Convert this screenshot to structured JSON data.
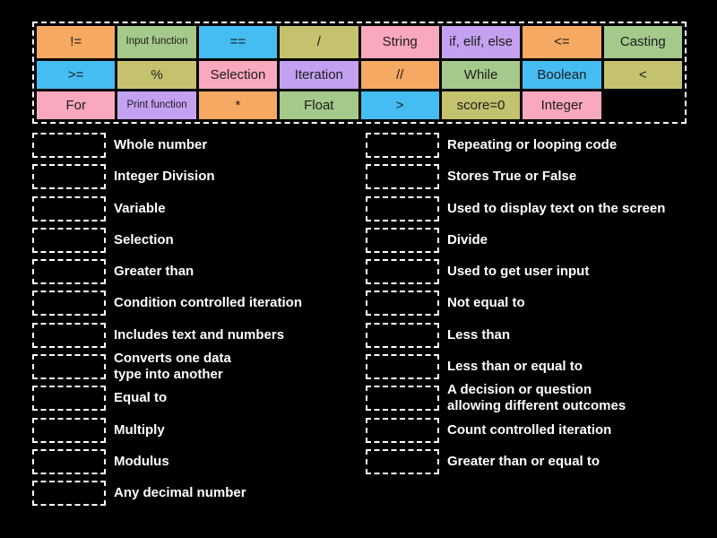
{
  "colors": {
    "background": "#000000",
    "tile_text": "#1c1c1c",
    "definition_text": "#ffffff",
    "slot_border": "#ffffff",
    "palette": {
      "orange": "#F5A962",
      "green": "#A5C98B",
      "blue": "#45BDF2",
      "khaki": "#C4C26E",
      "pink": "#F9A8BE",
      "purple": "#C4A1F0"
    }
  },
  "tile_bank": {
    "rows": [
      [
        {
          "label": "!=",
          "color": "orange"
        },
        {
          "label": "Input function",
          "color": "green",
          "small": true
        },
        {
          "label": "==",
          "color": "blue"
        },
        {
          "label": "/",
          "color": "khaki"
        },
        {
          "label": "String",
          "color": "pink"
        },
        {
          "label": "if, elif, else",
          "color": "purple"
        },
        {
          "label": "<=",
          "color": "orange"
        },
        {
          "label": "Casting",
          "color": "green"
        }
      ],
      [
        {
          "label": ">=",
          "color": "blue"
        },
        {
          "label": "%",
          "color": "khaki"
        },
        {
          "label": "Selection",
          "color": "pink"
        },
        {
          "label": "Iteration",
          "color": "purple"
        },
        {
          "label": "//",
          "color": "orange"
        },
        {
          "label": "While",
          "color": "green"
        },
        {
          "label": "Boolean",
          "color": "blue"
        },
        {
          "label": "<",
          "color": "khaki"
        }
      ],
      [
        {
          "label": "For",
          "color": "pink"
        },
        {
          "label": "Print function",
          "color": "purple",
          "small": true
        },
        {
          "label": "*",
          "color": "orange"
        },
        {
          "label": "Float",
          "color": "green"
        },
        {
          "label": ">",
          "color": "blue"
        },
        {
          "label": "score=0",
          "color": "khaki"
        },
        {
          "label": "Integer",
          "color": "pink"
        }
      ]
    ]
  },
  "definitions": {
    "left": [
      "Whole number",
      "Integer Division",
      "Variable",
      "Selection",
      "Greater than",
      "Condition controlled iteration",
      "Includes text and numbers",
      "Converts one data\ntype into another",
      "Equal to",
      "Multiply",
      "Modulus",
      "Any decimal number"
    ],
    "right": [
      "Repeating or looping code",
      "Stores True or False",
      "Used to display text on the screen",
      "Divide",
      "Used to get user input",
      "Not equal to",
      "Less than",
      "Less than or equal to",
      "A decision or question\nallowing different outcomes",
      "Count controlled iteration",
      "Greater than or equal to"
    ]
  }
}
